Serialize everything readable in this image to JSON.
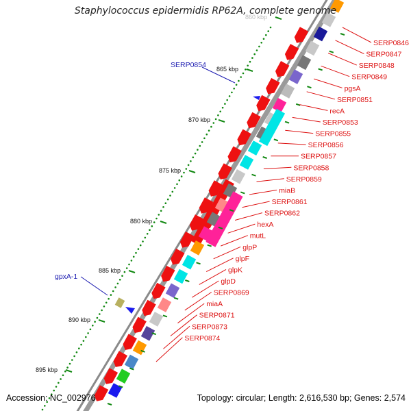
{
  "title": "Staphylococcus epidermidis RP62A, complete genome",
  "footer": {
    "accession": "Accession: NC_002976",
    "stats": "Topology: circular; Length: 2,616,530 bp; Genes: 2,574"
  },
  "colors": {
    "gene_red": "#ee1111",
    "rna_blue": "#1a1aee",
    "label_red": "#dd1111",
    "label_blue": "#1a1ab0",
    "tick_green": "#118811",
    "backbone_grey": "#8a8a8a"
  },
  "scale_labels": [
    {
      "text": "860 kbp"
    },
    {
      "text": "865 kbp"
    },
    {
      "text": "870 kbp"
    },
    {
      "text": "875 kbp"
    },
    {
      "text": "880 kbp"
    },
    {
      "text": "885 kbp"
    },
    {
      "text": "890 kbp"
    },
    {
      "text": "895 kbp"
    }
  ],
  "left_features": [
    {
      "label": "SERP0854",
      "type": "tRNA"
    },
    {
      "label": "gpxA-1",
      "type": "gene"
    }
  ],
  "right_labels": [
    "SERP0846",
    "SERP0847",
    "SERP0848",
    "SERP0849",
    "pgsA",
    "SERP0851",
    "recA",
    "SERP0853",
    "SERP0855",
    "SERP0856",
    "SERP0857",
    "SERP0858",
    "SERP0859",
    "miaB",
    "SERP0861",
    "SERP0862",
    "hexA",
    "mutL",
    "glpP",
    "glpF",
    "glpK",
    "glpD",
    "SERP0869",
    "miaA",
    "SERP0871",
    "SERP0873",
    "SERP0874"
  ],
  "cog_colors": [
    "#ff9900",
    "#c8c8c8",
    "#1a1a99",
    "#c8c8c8",
    "#777777",
    "#7a66cc",
    "#bbbbbb",
    "#ff2299",
    "#c8c8c8",
    "#777777",
    "#00e5e5",
    "#00e5e5",
    "#c8c8c8",
    "#777777",
    "#ff8888",
    "#777777",
    "#ff2299",
    "#ff9900",
    "#00e5e5",
    "#00e5e5",
    "#7a66cc",
    "#ff8888",
    "#c8c8c8",
    "#55449a",
    "#ff9900",
    "#4a88c8",
    "#22cc22",
    "#1a1aee"
  ]
}
